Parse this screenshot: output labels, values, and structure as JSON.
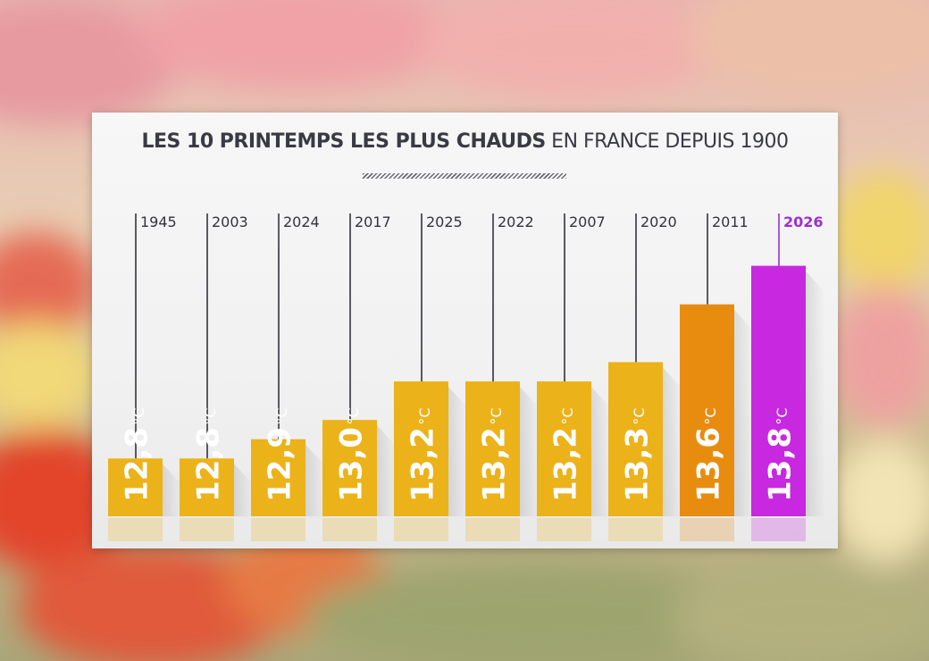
{
  "title": {
    "bold": "LES 10 PRINTEMPS LES PLUS CHAUDS",
    "rest": " EN FRANCE DEPUIS 1900"
  },
  "chart_data": {
    "type": "bar",
    "title": "LES 10 PRINTEMPS LES PLUS CHAUDS EN FRANCE DEPUIS 1900",
    "categories": [
      "1945",
      "2003",
      "2024",
      "2017",
      "2025",
      "2022",
      "2007",
      "2020",
      "2011",
      "2026"
    ],
    "values": [
      12.8,
      12.8,
      12.9,
      13.0,
      13.2,
      13.2,
      13.2,
      13.3,
      13.6,
      13.8
    ],
    "value_labels": [
      "12,8",
      "12,8",
      "12,9",
      "13,0",
      "13,2",
      "13,2",
      "13,2",
      "13,3",
      "13,6",
      "13,8"
    ],
    "unit": "°C",
    "highlight_category": "2026",
    "colors": {
      "bar_default": "#ecb21a",
      "bar_warm": "#e88c10",
      "bar_highlight": "#c728e0",
      "label_highlight": "#9b2fd0",
      "label_default": "#33333d",
      "leader": "#33333d"
    },
    "ylim": [
      12.5,
      13.9
    ],
    "grid": false,
    "legend": "none"
  }
}
